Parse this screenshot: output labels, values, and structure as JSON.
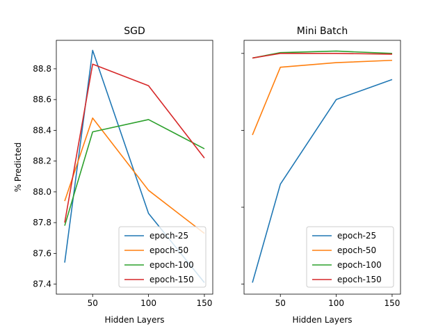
{
  "chart_data": [
    {
      "type": "line",
      "title": "SGD",
      "xlabel": "Hidden Layers",
      "ylabel": "% Predicted",
      "x": [
        25,
        50,
        100,
        150
      ],
      "xticks": [
        50,
        100,
        150
      ],
      "xtick_labels": [
        "50",
        "100",
        "150"
      ],
      "xlim": [
        17.5,
        157.5
      ],
      "ylim": [
        87.335,
        88.985
      ],
      "yticks": [
        87.4,
        87.6,
        87.8,
        88.0,
        88.2,
        88.4,
        88.6,
        88.8
      ],
      "ytick_labels": [
        "87.4",
        "87.6",
        "87.8",
        "88.0",
        "88.2",
        "88.4",
        "88.6",
        "88.8"
      ],
      "legend_position": "lower-right",
      "series": [
        {
          "name": "epoch-25",
          "color": "#1f77b4",
          "values": [
            87.54,
            88.92,
            87.86,
            87.41
          ]
        },
        {
          "name": "epoch-50",
          "color": "#ff7f0e",
          "values": [
            87.94,
            88.48,
            88.01,
            87.73
          ]
        },
        {
          "name": "epoch-100",
          "color": "#2ca02c",
          "values": [
            87.78,
            88.39,
            88.47,
            88.28
          ]
        },
        {
          "name": "epoch-150",
          "color": "#d62728",
          "values": [
            87.8,
            88.83,
            88.69,
            88.22
          ]
        }
      ]
    },
    {
      "type": "line",
      "title": "Mini Batch",
      "xlabel": "Hidden Layers",
      "ylabel": "",
      "x": [
        25,
        50,
        100,
        150
      ],
      "xticks": [
        50,
        100,
        150
      ],
      "xtick_labels": [
        "50",
        "100",
        "150"
      ],
      "xlim": [
        17.5,
        157.5
      ],
      "ylim": [
        0.335,
        1.985
      ],
      "yticks": [
        0.4,
        0.9,
        1.4,
        1.9
      ],
      "ytick_labels": [],
      "legend_position": "lower-right",
      "series": [
        {
          "name": "epoch-25",
          "color": "#1f77b4",
          "values": [
            0.41,
            1.05,
            1.6,
            1.73
          ]
        },
        {
          "name": "epoch-50",
          "color": "#ff7f0e",
          "values": [
            1.37,
            1.81,
            1.84,
            1.855
          ]
        },
        {
          "name": "epoch-100",
          "color": "#2ca02c",
          "values": [
            1.87,
            1.905,
            1.915,
            1.9
          ]
        },
        {
          "name": "epoch-150",
          "color": "#d62728",
          "values": [
            1.87,
            1.9,
            1.9,
            1.895
          ]
        }
      ]
    }
  ]
}
